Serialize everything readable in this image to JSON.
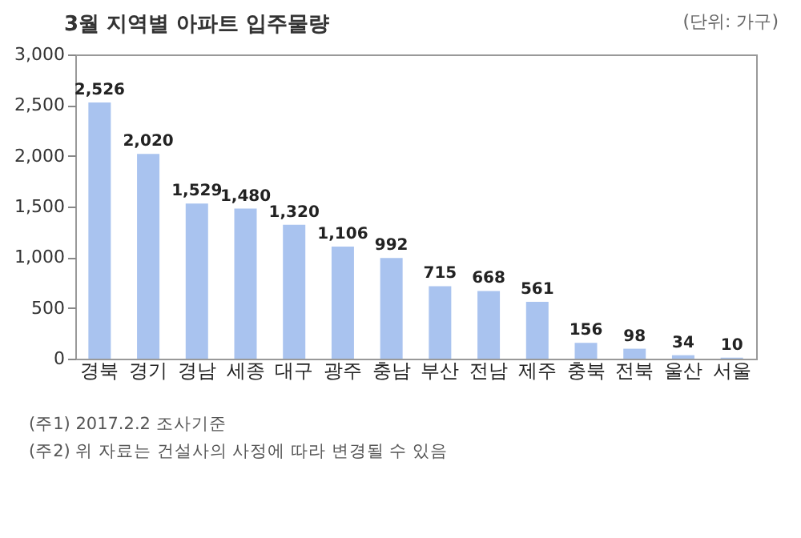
{
  "chart_data": {
    "type": "bar",
    "title": "3월 지역별 아파트 입주물량",
    "subtitle": "(단위: 가구)",
    "categories": [
      "경북",
      "경기",
      "경남",
      "세종",
      "대구",
      "광주",
      "충남",
      "부산",
      "전남",
      "제주",
      "충북",
      "전북",
      "울산",
      "서울"
    ],
    "values": [
      2526,
      2020,
      1529,
      1480,
      1320,
      1106,
      992,
      715,
      668,
      561,
      156,
      98,
      34,
      10
    ],
    "value_labels": [
      "2,526",
      "2,020",
      "1,529",
      "1,480",
      "1,320",
      "1,106",
      "992",
      "715",
      "668",
      "561",
      "156",
      "98",
      "34",
      "10"
    ],
    "color": "#a9c3ef",
    "ylim": [
      0,
      3000
    ],
    "yticks": [
      0,
      500,
      {
        "value": 1000,
        "label": "1,000"
      },
      {
        "value": 1500,
        "label": "1,500"
      },
      {
        "value": 2000,
        "label": "2,000"
      },
      {
        "value": 2500,
        "label": "2,500"
      },
      {
        "value": 3000,
        "label": "3,000"
      }
    ],
    "annotations": [
      "(주1) 2017.2.2 조사기준",
      "(주2) 위 자료는 건설사의 사정에 따라 변경될 수 있음"
    ]
  }
}
